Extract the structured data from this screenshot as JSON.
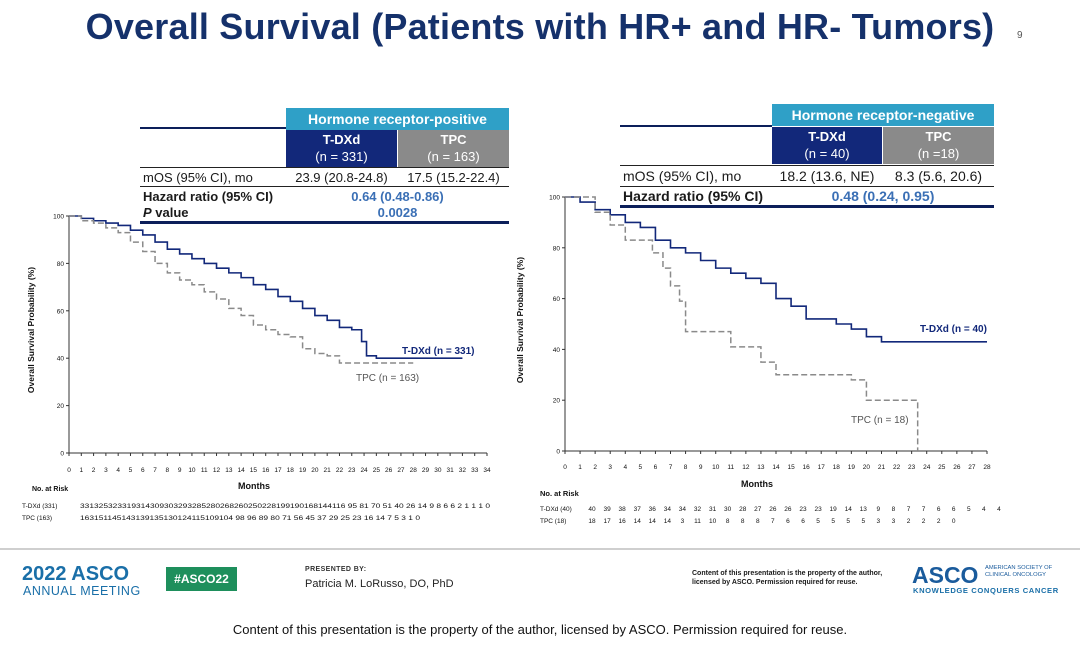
{
  "title": "Overall Survival (Patients with HR+ and HR- Tumors)",
  "page_number": "9",
  "left_table": {
    "group_header": "Hormone receptor-positive",
    "col1_name": "T-DXd",
    "col1_n": "(n = 331)",
    "col2_name": "TPC",
    "col2_n": "(n = 163)",
    "mos_label": "mOS (95% CI), mo",
    "mos_col1": "23.9 (20.8-24.8)",
    "mos_col2": "17.5 (15.2-22.4)",
    "hr_label": "Hazard ratio (95% CI)",
    "hr_value": "0.64 (0.48-0.86)",
    "p_label_italic": "P",
    "p_label_rest": " value",
    "p_value": "0.0028"
  },
  "right_table": {
    "group_header": "Hormone receptor-negative",
    "col1_name": "T-DXd",
    "col1_n": "(n = 40)",
    "col2_name": "TPC",
    "col2_n": "(n =18)",
    "mos_label": "mOS (95% CI), mo",
    "mos_col1": "18.2 (13.6, NE)",
    "mos_col2": "8.3 (5.6, 20.6)",
    "hr_label": "Hazard ratio (95% CI)",
    "hr_value": "0.48 (0.24, 0.95)"
  },
  "colors": {
    "tdxd": "#12287a",
    "tpc": "#8a8a8a",
    "header": "#2fa0c7",
    "title": "#15316b"
  },
  "chart_data": [
    {
      "type": "line",
      "ylabel": "Overall Survival Probability (%)",
      "xlabel": "Months",
      "x_ticks": [
        "0",
        "1",
        "2",
        "3",
        "4",
        "5",
        "6",
        "7",
        "8",
        "9",
        "10",
        "11",
        "12",
        "13",
        "14",
        "15",
        "16",
        "17",
        "18",
        "19",
        "20",
        "21",
        "22",
        "23",
        "24",
        "25",
        "26",
        "27",
        "28",
        "29",
        "30",
        "31",
        "32",
        "33",
        "34"
      ],
      "y_ticks": [
        "0",
        "20",
        "40",
        "60",
        "80",
        "100"
      ],
      "xlim": [
        0,
        34
      ],
      "ylim": [
        0,
        100
      ],
      "series": [
        {
          "name": "T-DXd (n = 331)",
          "style": "solid",
          "x": [
            0,
            1,
            2,
            3,
            4,
            5,
            6,
            7,
            8,
            9,
            10,
            11,
            12,
            13,
            14,
            15,
            16,
            17,
            18,
            19,
            20,
            21,
            22,
            23,
            23.8,
            24.2,
            25,
            26,
            27,
            28,
            29,
            30,
            31,
            32
          ],
          "y": [
            100,
            99,
            98,
            97,
            96,
            94,
            92,
            89,
            86,
            84,
            82,
            80,
            78,
            76,
            74,
            71,
            69,
            66,
            64,
            61,
            58,
            56,
            53,
            52,
            47,
            41,
            40,
            40,
            40,
            40,
            40,
            40,
            40,
            40
          ]
        },
        {
          "name": "TPC (n = 163)",
          "style": "dashed",
          "x": [
            0,
            1,
            2,
            3,
            4,
            5,
            6,
            7,
            8,
            9,
            10,
            11,
            12,
            13,
            14,
            15,
            16,
            17,
            18,
            19,
            20,
            21,
            22,
            23,
            24,
            25,
            26,
            27,
            28
          ],
          "y": [
            100,
            98,
            97,
            95,
            93,
            89,
            85,
            80,
            76,
            73,
            71,
            68,
            65,
            61,
            58,
            54,
            52,
            50,
            49,
            44,
            42,
            41,
            38,
            38,
            38,
            38,
            38,
            38,
            38
          ]
        }
      ]
    },
    {
      "type": "line",
      "ylabel": "Overall Survival Probability (%)",
      "xlabel": "Months",
      "x_ticks": [
        "0",
        "1",
        "2",
        "3",
        "4",
        "5",
        "6",
        "7",
        "8",
        "9",
        "10",
        "11",
        "12",
        "13",
        "14",
        "15",
        "16",
        "17",
        "18",
        "19",
        "20",
        "21",
        "22",
        "23",
        "24",
        "25",
        "26",
        "27",
        "28"
      ],
      "y_ticks": [
        "0",
        "20",
        "40",
        "60",
        "80",
        "100"
      ],
      "xlim": [
        0,
        28
      ],
      "ylim": [
        0,
        100
      ],
      "series": [
        {
          "name": "T-DXd (n = 40)",
          "style": "solid",
          "x": [
            0,
            1,
            2,
            3,
            4,
            5,
            6,
            7,
            8,
            9,
            10,
            11,
            12,
            13,
            14,
            15,
            16,
            17,
            18,
            19,
            20,
            21,
            22,
            23,
            24,
            25,
            26,
            27,
            28
          ],
          "y": [
            100,
            98,
            95,
            93,
            90,
            88,
            83,
            80,
            78,
            75,
            72,
            70,
            68,
            66,
            60,
            57,
            52,
            52,
            50,
            48,
            45,
            43,
            43,
            43,
            43,
            43,
            43,
            43,
            43
          ]
        },
        {
          "name": "TPC (n = 18)",
          "style": "dashed",
          "x": [
            0,
            1,
            2,
            3,
            4,
            5,
            5.8,
            6.5,
            7,
            7.6,
            8,
            9,
            10,
            11,
            12,
            13,
            14,
            15,
            16,
            17,
            18,
            19,
            20,
            21,
            22,
            23,
            23.4
          ],
          "y": [
            100,
            100,
            94,
            89,
            83,
            83,
            78,
            72,
            65,
            59,
            47,
            47,
            47,
            41,
            41,
            35,
            30,
            30,
            30,
            30,
            30,
            28,
            20,
            20,
            20,
            20,
            0
          ]
        }
      ]
    }
  ],
  "risk_tables": [
    {
      "title": "No. at Risk",
      "rows": [
        {
          "label": "T-DXd (331)",
          "values": "331325323319314309303293285280268260250228199190168144116 95 81 70 51 40 26 14 9 8 6 6 2 1 1 1 0"
        },
        {
          "label": "TPC (163)",
          "values": "163151145143139135130124115109104 98 96 89 80 71 56 45 37 29 25 23 16 14 7 5 3 1 0"
        }
      ]
    },
    {
      "title": "No. at Risk",
      "rows": [
        {
          "label": "T-DXd (40)",
          "values": [
            "40",
            "39",
            "38",
            "37",
            "36",
            "34",
            "34",
            "32",
            "31",
            "30",
            "28",
            "27",
            "26",
            "26",
            "23",
            "23",
            "19",
            "14",
            "13",
            "9",
            "8",
            "7",
            "7",
            "6",
            "6",
            "5",
            "4",
            "4"
          ]
        },
        {
          "label": "TPC (18)",
          "values": [
            "18",
            "17",
            "16",
            "14",
            "14",
            "14",
            "3",
            "11",
            "10",
            "8",
            "8",
            "8",
            "7",
            "6",
            "6",
            "5",
            "5",
            "5",
            "5",
            "3",
            "3",
            "2",
            "2",
            "2",
            "0"
          ]
        }
      ]
    }
  ],
  "footer": {
    "asco_year": "2022 ASCO",
    "asco_sub": "ANNUAL MEETING",
    "hashtag": "#ASCO22",
    "presented_by": "PRESENTED BY:",
    "presenter": "Patricia M. LoRusso, DO, PhD",
    "rights_small": "Content of this presentation is the property of the author, licensed by ASCO. Permission required for reuse.",
    "asco_logo": "ASCO",
    "asco_society": "AMERICAN SOCIETY OF CLINICAL ONCOLOGY",
    "asco_tagline": "KNOWLEDGE CONQUERS CANCER",
    "rights_note": "Content of this presentation is the property of the author, licensed by ASCO. Permission required for reuse."
  }
}
